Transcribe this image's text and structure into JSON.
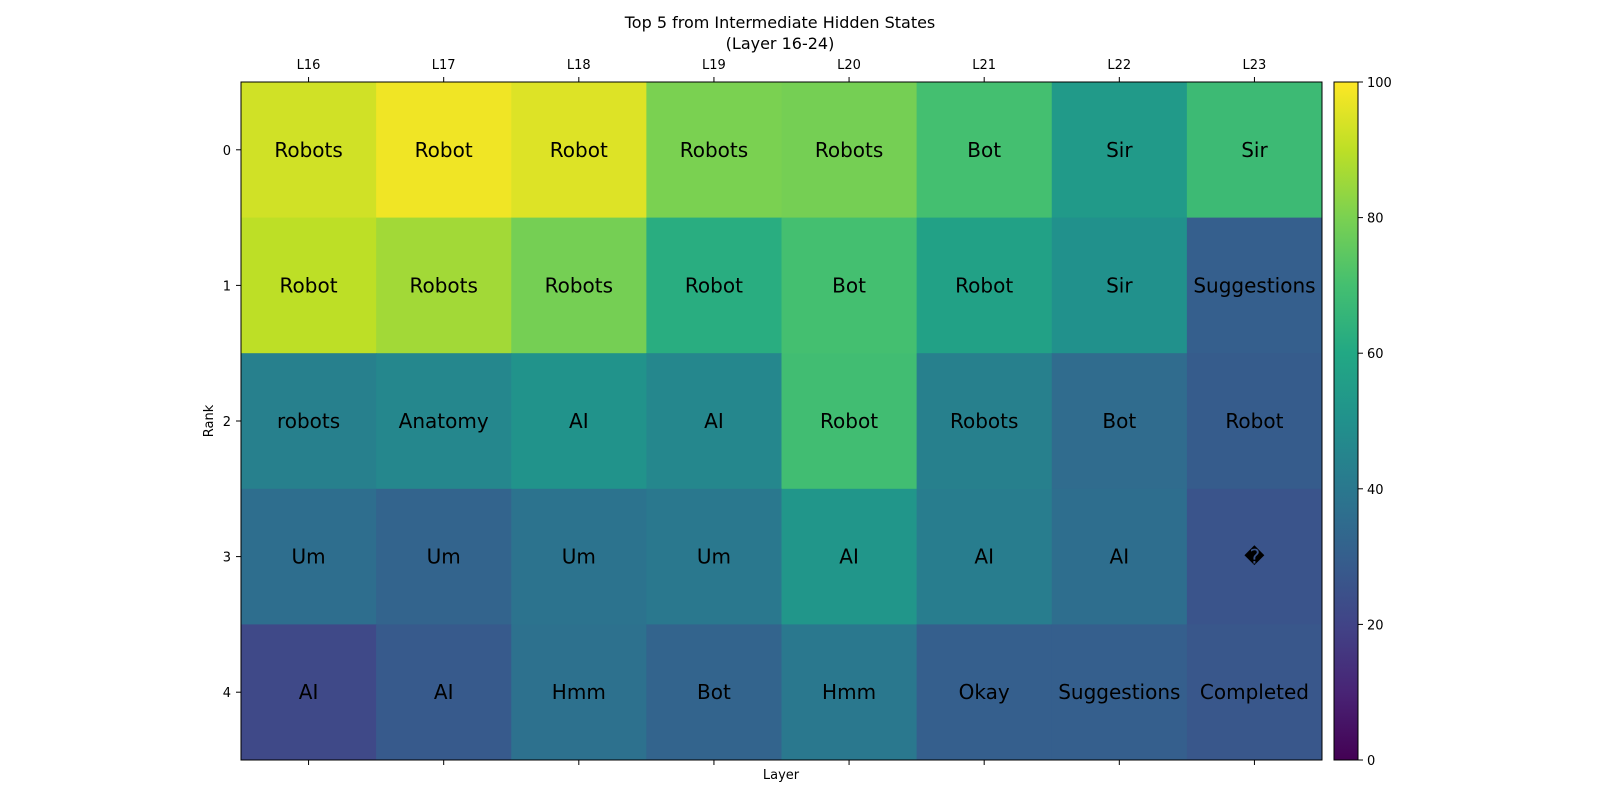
{
  "chart_data": {
    "type": "heatmap",
    "title_lines": [
      "Top 5 from Intermediate Hidden States",
      "(Layer 16-24)"
    ],
    "xlabel": "Layer",
    "ylabel": "Rank",
    "columns": [
      "L16",
      "L17",
      "L18",
      "L19",
      "L20",
      "L21",
      "L22",
      "L23"
    ],
    "rows": [
      "0",
      "1",
      "2",
      "3",
      "4"
    ],
    "cells": [
      [
        "Robots",
        "Robot",
        "Robot",
        "Robots",
        "Robots",
        "Bot",
        "Sir",
        "Sir"
      ],
      [
        "Robot",
        "Robots",
        "Robots",
        "Robot",
        "Bot",
        "Robot",
        "Sir",
        "Suggestions"
      ],
      [
        "robots",
        "Anatomy",
        "AI",
        "AI",
        "Robot",
        "Robots",
        "Bot",
        "Robot"
      ],
      [
        "Um",
        "Um",
        "Um",
        "Um",
        "AI",
        "AI",
        "AI",
        "�"
      ],
      [
        "AI",
        "AI",
        "Hmm",
        "Bot",
        "Hmm",
        "Okay",
        "Suggestions",
        "Completed"
      ]
    ],
    "values": [
      [
        93,
        98,
        95,
        80,
        79,
        70,
        54,
        68
      ],
      [
        90,
        86,
        79,
        62,
        70,
        57,
        50,
        30
      ],
      [
        43,
        46,
        51,
        46,
        69,
        43,
        35,
        29
      ],
      [
        36,
        32,
        38,
        40,
        52,
        42,
        36,
        26
      ],
      [
        22,
        28,
        37,
        32,
        40,
        30,
        30,
        27
      ]
    ],
    "colorbar": {
      "min": 0,
      "max": 100,
      "ticks": [
        0,
        20,
        40,
        60,
        80,
        100
      ],
      "colormap": "viridis"
    }
  }
}
